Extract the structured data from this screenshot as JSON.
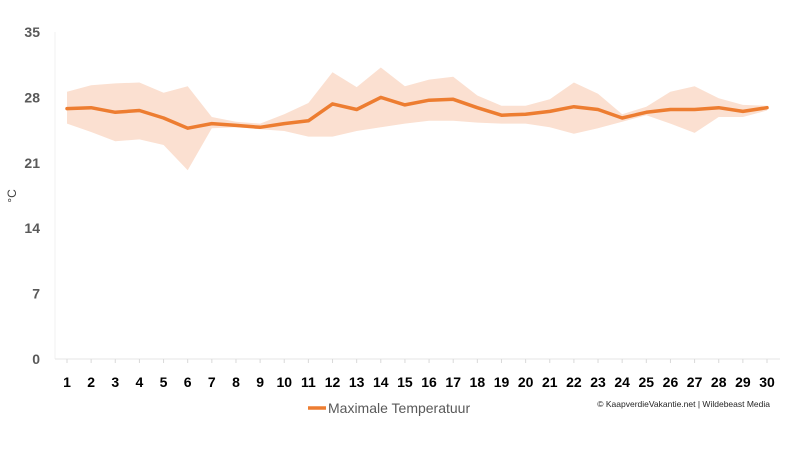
{
  "chart_data": {
    "type": "line",
    "title": "",
    "xlabel": "",
    "ylabel": "°C",
    "ylim": [
      0,
      35
    ],
    "yticks": [
      0,
      7,
      14,
      21,
      28,
      35
    ],
    "grid": false,
    "legend": "bottom-center",
    "x": [
      1,
      2,
      3,
      4,
      5,
      6,
      7,
      8,
      9,
      10,
      11,
      12,
      13,
      14,
      15,
      16,
      17,
      18,
      19,
      20,
      21,
      22,
      23,
      24,
      25,
      26,
      27,
      28,
      29,
      30
    ],
    "series": [
      {
        "name": "Maximale Temperatuur",
        "values": [
          26.8,
          26.9,
          26.4,
          26.6,
          25.8,
          24.7,
          25.2,
          25.0,
          24.8,
          25.2,
          25.5,
          27.3,
          26.7,
          28.0,
          27.2,
          27.7,
          27.8,
          26.9,
          26.1,
          26.2,
          26.5,
          27.0,
          26.7,
          25.8,
          26.4,
          26.7,
          26.7,
          26.9,
          26.5,
          26.9
        ],
        "range_min": [
          25.2,
          24.3,
          23.3,
          23.5,
          22.9,
          20.2,
          24.7,
          24.8,
          24.6,
          24.4,
          23.8,
          23.8,
          24.4,
          24.8,
          25.2,
          25.5,
          25.5,
          25.3,
          25.2,
          25.2,
          24.8,
          24.1,
          24.7,
          25.4,
          26.1,
          25.2,
          24.2,
          25.9,
          25.9,
          26.6
        ],
        "range_max": [
          28.6,
          29.3,
          29.5,
          29.6,
          28.5,
          29.2,
          25.9,
          25.4,
          25.2,
          26.2,
          27.4,
          30.7,
          29.1,
          31.2,
          29.2,
          29.9,
          30.2,
          28.2,
          27.1,
          27.1,
          27.8,
          29.6,
          28.4,
          26.2,
          27.0,
          28.6,
          29.2,
          27.9,
          27.2,
          27.1
        ]
      }
    ],
    "colors": {
      "line": "#ED7D31",
      "band": "#FBE0D1"
    },
    "credit": "© KaapverdieVakantie.net | Wildebeast Media"
  }
}
